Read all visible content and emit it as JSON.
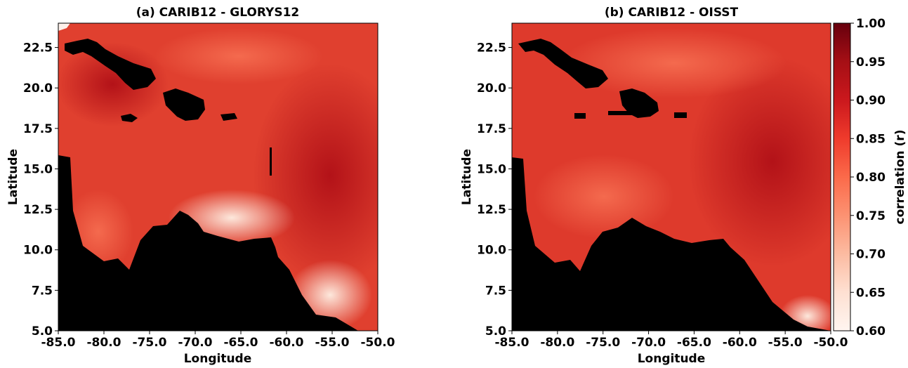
{
  "chart_data": [
    {
      "type": "heatmap",
      "title": "(a) CARIB12 - GLORYS12",
      "xlabel": "Longitude",
      "ylabel": "Latitude",
      "xlim": [
        -85.0,
        -50.0
      ],
      "ylim": [
        5.0,
        24.0
      ],
      "xticks": [
        "-85.0",
        "-80.0",
        "-75.0",
        "-70.0",
        "-65.0",
        "-60.0",
        "-55.0",
        "-50.0"
      ],
      "yticks": [
        "5.0",
        "7.5",
        "10.0",
        "12.5",
        "15.0",
        "17.5",
        "20.0",
        "22.5"
      ],
      "variable": "correlation (r)",
      "land_color": "#000000"
    },
    {
      "type": "heatmap",
      "title": "(b) CARIB12 - OISST",
      "xlabel": "Longitude",
      "ylabel": "Latitude",
      "xlim": [
        -85.0,
        -50.0
      ],
      "ylim": [
        5.0,
        24.0
      ],
      "xticks": [
        "-85.0",
        "-80.0",
        "-75.0",
        "-70.0",
        "-65.0",
        "-60.0",
        "-55.0",
        "-50.0"
      ],
      "yticks": [
        "5.0",
        "7.5",
        "10.0",
        "12.5",
        "15.0",
        "17.5",
        "20.0",
        "22.5"
      ],
      "variable": "correlation (r)",
      "land_color": "#000000"
    }
  ],
  "colorbar": {
    "label": "correlation (r)",
    "range": [
      0.6,
      1.0
    ],
    "ticks": [
      "0.60",
      "0.65",
      "0.70",
      "0.75",
      "0.80",
      "0.85",
      "0.90",
      "0.95",
      "1.00"
    ],
    "colormap": "Reds",
    "colors": [
      "#fff5f0",
      "#fee0d2",
      "#fcbba1",
      "#fc9272",
      "#fb6a4a",
      "#ef3b2c",
      "#cb181d",
      "#a50f15",
      "#67000d"
    ]
  }
}
